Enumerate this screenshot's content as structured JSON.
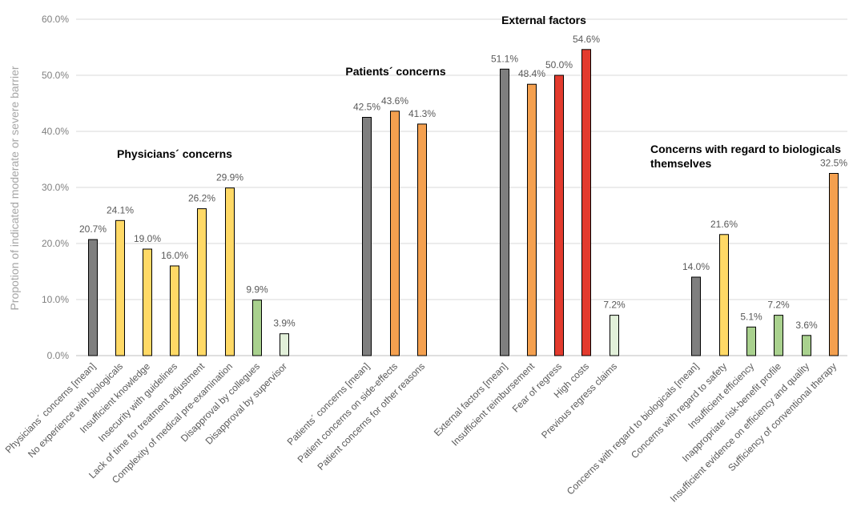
{
  "chart_data": {
    "type": "bar",
    "ylabel": "Propotion of indicated moderate or severe barrier",
    "ylim": [
      0,
      60
    ],
    "yticks": [
      "0.0%",
      "10.0%",
      "20.0%",
      "30.0%",
      "40.0%",
      "50.0%",
      "60.0%"
    ],
    "grid": true,
    "colors": {
      "gray": "#7f7f7f",
      "yellow": "#ffd966",
      "green": "#a9d18e",
      "lightgreen": "#e2f0d9",
      "orange": "#f4a04f",
      "red": "#e33b2e"
    },
    "groups": [
      {
        "label": [
          "Physicians´ concerns"
        ],
        "bars": [
          {
            "category": "Physicians´ concerns [mean]",
            "value": 20.7,
            "label": "20.7%",
            "color": "gray"
          },
          {
            "category": "No experience with biologicals",
            "value": 24.1,
            "label": "24.1%",
            "color": "yellow"
          },
          {
            "category": "Insufficient knowledge",
            "value": 19.0,
            "label": "19.0%",
            "color": "yellow"
          },
          {
            "category": "Insecurity with guidelines",
            "value": 16.0,
            "label": "16.0%",
            "color": "yellow"
          },
          {
            "category": "Lack of time for treatment adjustment",
            "value": 26.2,
            "label": "26.2%",
            "color": "yellow"
          },
          {
            "category": "Complexity of medical pre-examination",
            "value": 29.9,
            "label": "29.9%",
            "color": "yellow"
          },
          {
            "category": "Disapproval by collegues",
            "value": 9.9,
            "label": "9.9%",
            "color": "green"
          },
          {
            "category": "Disapproval by supervisor",
            "value": 3.9,
            "label": "3.9%",
            "color": "lightgreen"
          }
        ]
      },
      {
        "label": [
          "Patients´ concerns"
        ],
        "bars": [
          {
            "category": "Patients´ concerns [mean]",
            "value": 42.5,
            "label": "42.5%",
            "color": "gray"
          },
          {
            "category": "Patient concerns on side-effects",
            "value": 43.6,
            "label": "43.6%",
            "color": "orange"
          },
          {
            "category": "Patient concerns for other reasons",
            "value": 41.3,
            "label": "41.3%",
            "color": "orange"
          }
        ]
      },
      {
        "label": [
          "External factors"
        ],
        "bars": [
          {
            "category": "External factors [mean]",
            "value": 51.1,
            "label": "51.1%",
            "color": "gray"
          },
          {
            "category": "Insufficient reimbursement",
            "value": 48.4,
            "label": "48.4%",
            "color": "orange"
          },
          {
            "category": "Fear of regress",
            "value": 50.0,
            "label": "50.0%",
            "color": "red"
          },
          {
            "category": "High costs",
            "value": 54.6,
            "label": "54.6%",
            "color": "red"
          },
          {
            "category": "Previous regress claims",
            "value": 7.2,
            "label": "7.2%",
            "color": "lightgreen"
          }
        ]
      },
      {
        "label": [
          "Concerns with regard to biologicals",
          "themselves"
        ],
        "bars": [
          {
            "category": "Concerns with regard to biologicals [mean]",
            "value": 14.0,
            "label": "14.0%",
            "color": "gray"
          },
          {
            "category": "Concerns with regard to safety",
            "value": 21.6,
            "label": "21.6%",
            "color": "yellow"
          },
          {
            "category": "Insufficient efficiency",
            "value": 5.1,
            "label": "5.1%",
            "color": "green"
          },
          {
            "category": "Inappropriate risk-benefit profile",
            "value": 7.2,
            "label": "7.2%",
            "color": "green"
          },
          {
            "category": "Insufficient evidence on efficiency and quality",
            "value": 3.6,
            "label": "3.6%",
            "color": "green"
          },
          {
            "category": "Sufficiency of conventional therapy",
            "value": 32.5,
            "label": "32.5%",
            "color": "orange"
          }
        ]
      }
    ]
  }
}
